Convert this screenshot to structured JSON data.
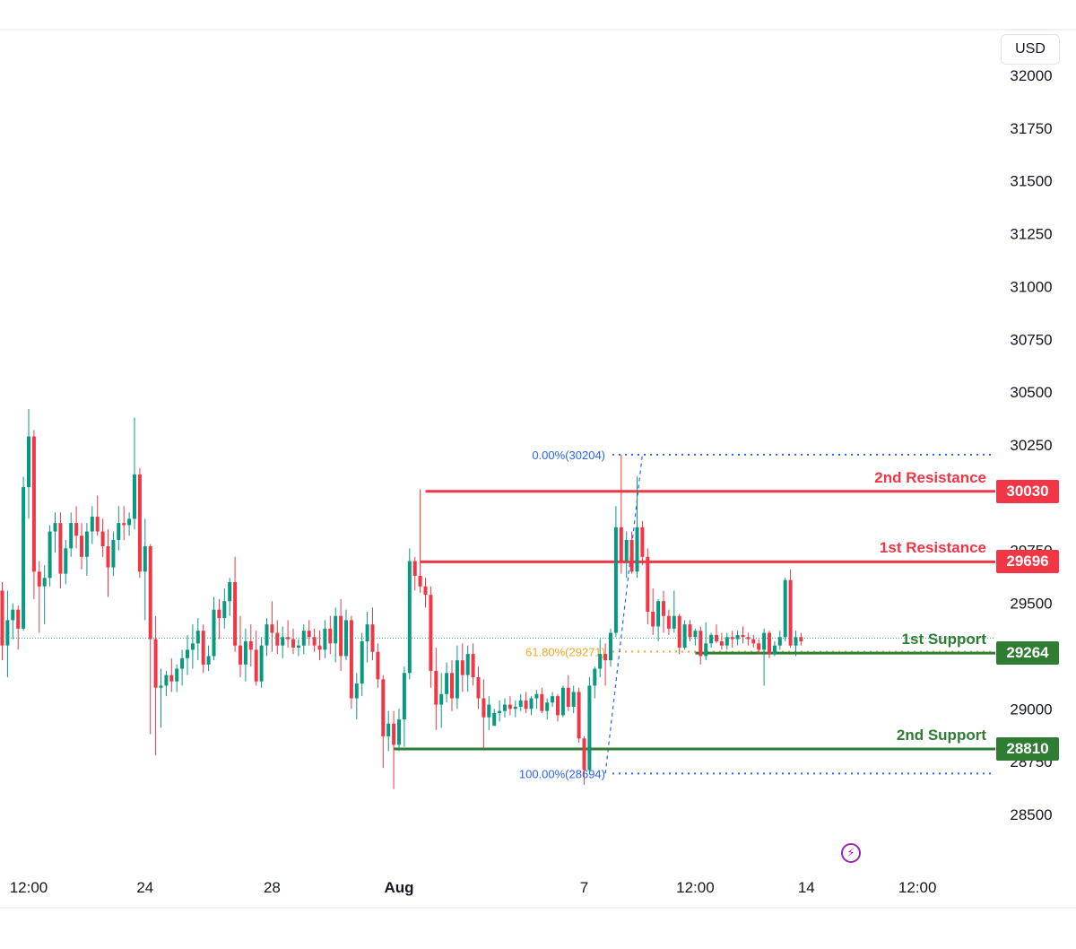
{
  "currency": "USD",
  "chart_data": {
    "type": "candlestick",
    "y_axis": {
      "range": [
        28350,
        32100
      ],
      "ticks": [
        "32000",
        "31750",
        "31500",
        "31250",
        "31000",
        "30750",
        "30500",
        "30250",
        "29750",
        "29500",
        "29000",
        "28750",
        "28500"
      ]
    },
    "x_axis": {
      "ticks": [
        {
          "label": "12:00",
          "idx": 5
        },
        {
          "label": "24",
          "idx": 27
        },
        {
          "label": "28",
          "idx": 51
        },
        {
          "label": "Aug",
          "idx": 75
        },
        {
          "label": "7",
          "idx": 110
        },
        {
          "label": "12:00",
          "idx": 131
        },
        {
          "label": "14",
          "idx": 152
        },
        {
          "label": "12:00",
          "idx": 173
        }
      ]
    },
    "last_price": 29335,
    "levels": [
      {
        "name": "2nd Resistance",
        "value": 30030,
        "label": "30030",
        "color": "#f23645",
        "start_idx": 80
      },
      {
        "name": "1st Resistance",
        "value": 29696,
        "label": "29696",
        "color": "#f23645",
        "start_idx": 79
      },
      {
        "name": "1st Support",
        "value": 29264,
        "label": "29264",
        "color": "#2e7d32",
        "start_idx": 131
      },
      {
        "name": "2nd Support",
        "value": 28810,
        "label": "28810",
        "color": "#2e7d32",
        "start_idx": 74
      }
    ],
    "fibonacci": [
      {
        "label": "0.00%(30204)",
        "value": 30204,
        "color": "#2962ff"
      },
      {
        "label": "61.80%(29271)",
        "value": 29271,
        "color": "#f5a623"
      },
      {
        "label": "100.00%(28694)",
        "value": 28694,
        "color": "#2962ff"
      }
    ],
    "fib_trend": {
      "from": {
        "idx": 114,
        "value": 28694
      },
      "to": {
        "idx": 121,
        "value": 30204
      }
    },
    "candles": [
      [
        29560,
        29600,
        29230,
        29300
      ],
      [
        29300,
        29560,
        29150,
        29420
      ],
      [
        29420,
        29500,
        29330,
        29470
      ],
      [
        29470,
        29490,
        29280,
        29380
      ],
      [
        29380,
        30100,
        29370,
        30050
      ],
      [
        30050,
        30420,
        29900,
        30290
      ],
      [
        30290,
        30320,
        29520,
        29650
      ],
      [
        29650,
        29700,
        29360,
        29580
      ],
      [
        29580,
        29680,
        29400,
        29620
      ],
      [
        29620,
        29870,
        29580,
        29840
      ],
      [
        29840,
        29930,
        29740,
        29880
      ],
      [
        29880,
        29930,
        29570,
        29640
      ],
      [
        29640,
        29800,
        29590,
        29760
      ],
      [
        29760,
        29930,
        29720,
        29880
      ],
      [
        29880,
        29960,
        29760,
        29820
      ],
      [
        29820,
        29880,
        29660,
        29720
      ],
      [
        29720,
        29880,
        29630,
        29840
      ],
      [
        29840,
        29960,
        29780,
        29910
      ],
      [
        29910,
        30010,
        29820,
        29840
      ],
      [
        29840,
        29900,
        29720,
        29770
      ],
      [
        29770,
        29850,
        29530,
        29670
      ],
      [
        29670,
        29840,
        29630,
        29800
      ],
      [
        29800,
        29960,
        29750,
        29880
      ],
      [
        29880,
        29960,
        29800,
        29870
      ],
      [
        29870,
        29930,
        29820,
        29900
      ],
      [
        29900,
        30380,
        29850,
        30110
      ],
      [
        30110,
        30140,
        29620,
        29650
      ],
      [
        29650,
        29900,
        29420,
        29770
      ],
      [
        29770,
        29780,
        28880,
        29330
      ],
      [
        29330,
        29440,
        28780,
        29100
      ],
      [
        29100,
        29190,
        28910,
        29110
      ],
      [
        29110,
        29180,
        29060,
        29160
      ],
      [
        29160,
        29240,
        29080,
        29130
      ],
      [
        29130,
        29210,
        29080,
        29190
      ],
      [
        29190,
        29280,
        29110,
        29240
      ],
      [
        29240,
        29350,
        29160,
        29280
      ],
      [
        29280,
        29400,
        29190,
        29310
      ],
      [
        29310,
        29430,
        29230,
        29370
      ],
      [
        29370,
        29400,
        29170,
        29210
      ],
      [
        29210,
        29300,
        29180,
        29250
      ],
      [
        29250,
        29530,
        29230,
        29470
      ],
      [
        29470,
        29520,
        29330,
        29430
      ],
      [
        29430,
        29570,
        29380,
        29510
      ],
      [
        29510,
        29620,
        29440,
        29600
      ],
      [
        29600,
        29720,
        29270,
        29300
      ],
      [
        29300,
        29440,
        29150,
        29210
      ],
      [
        29210,
        29380,
        29130,
        29320
      ],
      [
        29320,
        29400,
        29200,
        29280
      ],
      [
        29280,
        29370,
        29110,
        29130
      ],
      [
        29130,
        29340,
        29100,
        29300
      ],
      [
        29300,
        29430,
        29250,
        29400
      ],
      [
        29400,
        29510,
        29270,
        29360
      ],
      [
        29360,
        29420,
        29260,
        29300
      ],
      [
        29300,
        29390,
        29240,
        29340
      ],
      [
        29340,
        29420,
        29290,
        29330
      ],
      [
        29330,
        29380,
        29260,
        29290
      ],
      [
        29290,
        29330,
        29250,
        29300
      ],
      [
        29300,
        29400,
        29260,
        29370
      ],
      [
        29370,
        29420,
        29300,
        29340
      ],
      [
        29340,
        29380,
        29270,
        29300
      ],
      [
        29300,
        29370,
        29230,
        29280
      ],
      [
        29280,
        29420,
        29240,
        29380
      ],
      [
        29380,
        29440,
        29260,
        29310
      ],
      [
        29310,
        29480,
        29220,
        29440
      ],
      [
        29440,
        29520,
        29180,
        29250
      ],
      [
        29250,
        29470,
        29230,
        29420
      ],
      [
        29420,
        29440,
        29000,
        29050
      ],
      [
        29050,
        29170,
        28950,
        29120
      ],
      [
        29120,
        29360,
        29060,
        29320
      ],
      [
        29320,
        29460,
        29220,
        29400
      ],
      [
        29400,
        29480,
        29230,
        29270
      ],
      [
        29270,
        29310,
        29100,
        29140
      ],
      [
        29140,
        29160,
        28720,
        28870
      ],
      [
        28870,
        28990,
        28800,
        28930
      ],
      [
        28930,
        28990,
        28620,
        28830
      ],
      [
        28830,
        29000,
        28800,
        28950
      ],
      [
        28950,
        29200,
        28820,
        29170
      ],
      [
        29170,
        29760,
        29140,
        29700
      ],
      [
        29700,
        29720,
        29560,
        29630
      ],
      [
        29630,
        30040,
        29550,
        29580
      ],
      [
        29580,
        29620,
        29480,
        29540
      ],
      [
        29540,
        29580,
        29100,
        29180
      ],
      [
        29180,
        29290,
        28900,
        29020
      ],
      [
        29020,
        29170,
        28910,
        29070
      ],
      [
        29070,
        29220,
        29030,
        29170
      ],
      [
        29170,
        29230,
        28990,
        29050
      ],
      [
        29050,
        29300,
        29000,
        29230
      ],
      [
        29230,
        29310,
        29080,
        29160
      ],
      [
        29160,
        29300,
        29080,
        29260
      ],
      [
        29260,
        29310,
        29110,
        29150
      ],
      [
        29150,
        29200,
        29000,
        29050
      ],
      [
        29050,
        29140,
        28810,
        28960
      ],
      [
        28960,
        29060,
        28900,
        29020
      ],
      [
        28920,
        29000,
        28920,
        28980
      ],
      [
        28980,
        29040,
        28940,
        28990
      ],
      [
        28990,
        29050,
        28960,
        29020
      ],
      [
        29020,
        29060,
        28970,
        29000
      ],
      [
        29000,
        29040,
        28960,
        29010
      ],
      [
        29010,
        29070,
        28990,
        29040
      ],
      [
        29040,
        29080,
        28980,
        29000
      ],
      [
        29000,
        29060,
        28970,
        29050
      ],
      [
        29050,
        29090,
        29000,
        29070
      ],
      [
        29070,
        29100,
        28980,
        28990
      ],
      [
        28990,
        29050,
        28950,
        29030
      ],
      [
        29030,
        29080,
        29010,
        29060
      ],
      [
        29060,
        29070,
        28940,
        28970
      ],
      [
        28970,
        29110,
        28960,
        29100
      ],
      [
        29100,
        29160,
        28990,
        29010
      ],
      [
        29010,
        29110,
        28980,
        29080
      ],
      [
        29080,
        29100,
        28840,
        28860
      ],
      [
        28860,
        28870,
        28640,
        28710
      ],
      [
        28710,
        29150,
        28690,
        29110
      ],
      [
        29110,
        29200,
        29050,
        29190
      ],
      [
        29190,
        29330,
        29150,
        29260
      ],
      [
        29260,
        29310,
        29110,
        29230
      ],
      [
        29230,
        29380,
        29200,
        29360
      ],
      [
        29360,
        29960,
        29340,
        29860
      ],
      [
        29860,
        30204,
        29640,
        29700
      ],
      [
        29700,
        29840,
        29620,
        29800
      ],
      [
        29800,
        29840,
        29640,
        29650
      ],
      [
        29650,
        30100,
        29620,
        29860
      ],
      [
        29860,
        29890,
        29680,
        29720
      ],
      [
        29720,
        29760,
        29400,
        29460
      ],
      [
        29460,
        29570,
        29350,
        29390
      ],
      [
        29390,
        29520,
        29320,
        29510
      ],
      [
        29510,
        29560,
        29360,
        29440
      ],
      [
        29440,
        29470,
        29350,
        29380
      ],
      [
        29380,
        29560,
        29360,
        29440
      ],
      [
        29440,
        29450,
        29260,
        29290
      ],
      [
        29290,
        29420,
        29280,
        29400
      ],
      [
        29400,
        29420,
        29320,
        29340
      ],
      [
        29340,
        29380,
        29300,
        29370
      ],
      [
        29370,
        29390,
        29210,
        29250
      ],
      [
        29250,
        29410,
        29230,
        29310
      ],
      [
        29310,
        29360,
        29290,
        29350
      ],
      [
        29350,
        29400,
        29310,
        29320
      ],
      [
        29320,
        29360,
        29280,
        29300
      ],
      [
        29300,
        29360,
        29280,
        29340
      ],
      [
        29340,
        29370,
        29290,
        29330
      ],
      [
        29330,
        29370,
        29300,
        29350
      ],
      [
        29350,
        29390,
        29310,
        29340
      ],
      [
        29340,
        29360,
        29300,
        29330
      ],
      [
        29330,
        29350,
        29290,
        29310
      ],
      [
        29310,
        29330,
        29260,
        29280
      ],
      [
        29280,
        29380,
        29110,
        29360
      ],
      [
        29360,
        29370,
        29240,
        29260
      ],
      [
        29260,
        29320,
        29250,
        29300
      ],
      [
        29300,
        29370,
        29280,
        29340
      ],
      [
        29340,
        29620,
        29320,
        29610
      ],
      [
        29610,
        29660,
        29290,
        29300
      ],
      [
        29300,
        29370,
        29250,
        29340
      ],
      [
        29340,
        29360,
        29300,
        29320
      ]
    ]
  }
}
